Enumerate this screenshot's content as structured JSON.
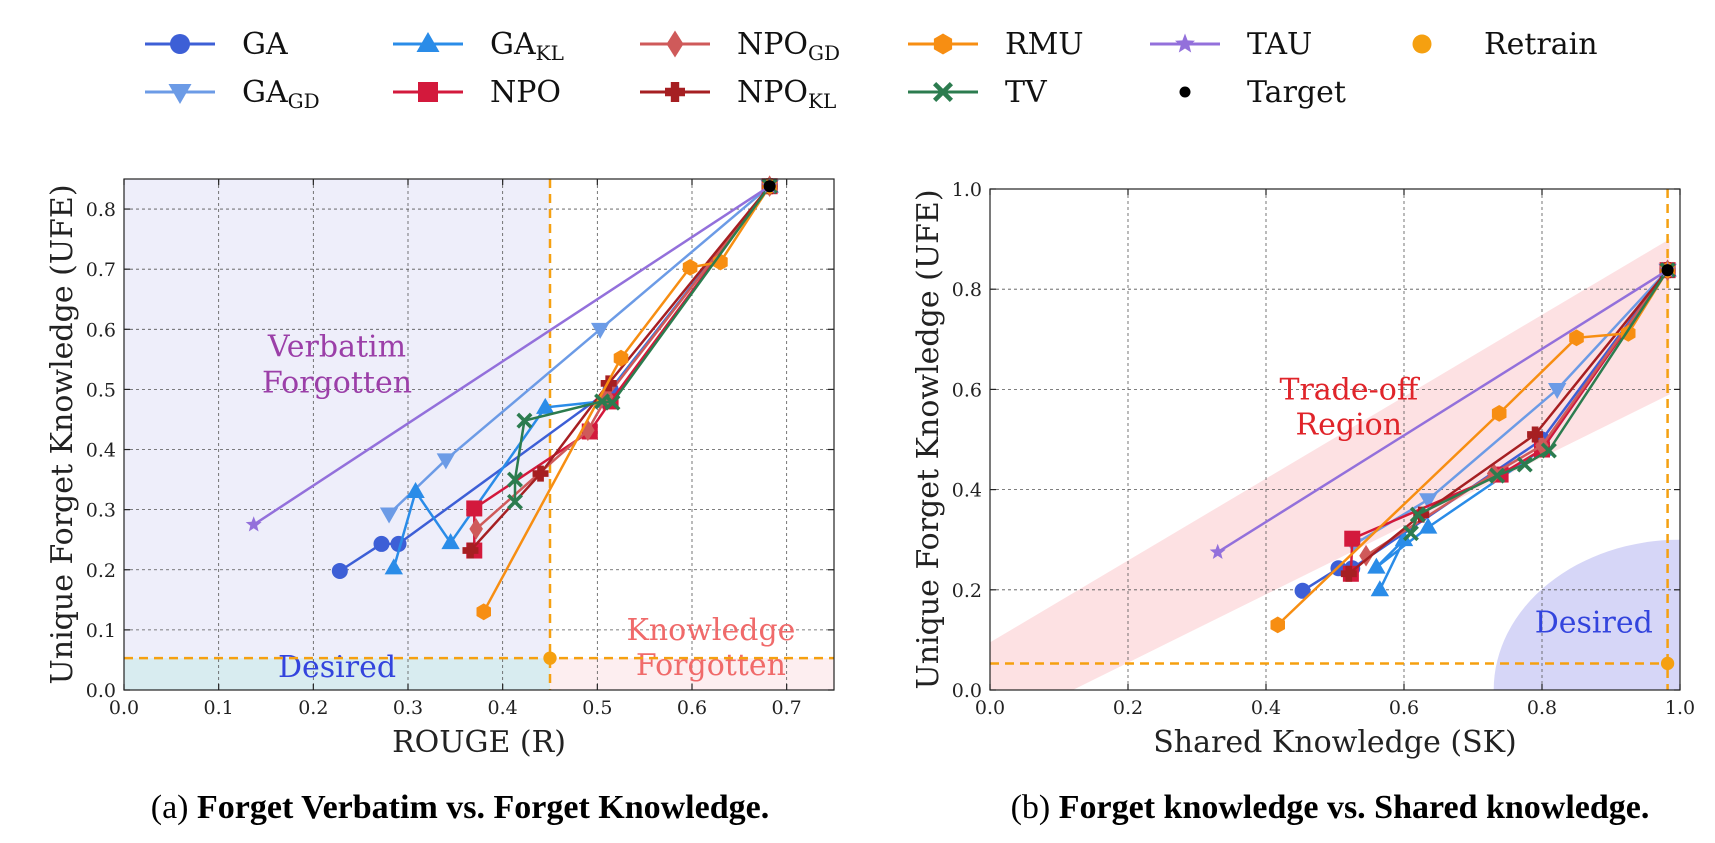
{
  "legend": [
    {
      "label": "GA",
      "sub": "",
      "color": "#3d5fd6",
      "marker": "circle"
    },
    {
      "label": "GA",
      "sub": "GD",
      "color": "#6c9be6",
      "marker": "tri-down"
    },
    {
      "label": "GA",
      "sub": "KL",
      "color": "#2a8ce8",
      "marker": "tri-up"
    },
    {
      "label": "NPO",
      "sub": "",
      "color": "#d3193c",
      "marker": "square"
    },
    {
      "label": "NPO",
      "sub": "GD",
      "color": "#cf5a5a",
      "marker": "diamond"
    },
    {
      "label": "NPO",
      "sub": "KL",
      "color": "#a61f22",
      "marker": "plus"
    },
    {
      "label": "RMU",
      "sub": "",
      "color": "#f78e12",
      "marker": "hexagon"
    },
    {
      "label": "TV",
      "sub": "",
      "color": "#2c7c4f",
      "marker": "x"
    },
    {
      "label": "TAU",
      "sub": "",
      "color": "#9370db",
      "marker": "star"
    },
    {
      "label": "Target",
      "sub": "",
      "color": "#000000",
      "marker": "dot"
    },
    {
      "label": "Retrain",
      "sub": "",
      "color": "#f5a010",
      "marker": "bigdot"
    }
  ],
  "chart_data": [
    {
      "type": "line",
      "caption_prefix": "(a) ",
      "caption_bold": "Forget Verbatim vs. Forget Knowledge.",
      "xlabel": "ROUGE (R)",
      "ylabel": "Unique Forget Knowledge (UFE)",
      "xlim": [
        0.0,
        0.75
      ],
      "ylim": [
        0.0,
        0.85
      ],
      "xticks": [
        "0.0",
        "0.1",
        "0.2",
        "0.3",
        "0.4",
        "0.5",
        "0.6",
        "0.7"
      ],
      "yticks": [
        "0.0",
        "0.1",
        "0.2",
        "0.3",
        "0.4",
        "0.5",
        "0.6",
        "0.7",
        "0.8"
      ],
      "grid": true,
      "threshold_x": 0.45,
      "threshold_y": 0.053,
      "region_labels": [
        {
          "text": "Verbatim",
          "x": 0.225,
          "y": 0.555,
          "color": "#9b3fa8"
        },
        {
          "text": "Forgotten",
          "x": 0.225,
          "y": 0.495,
          "color": "#9b3fa8"
        },
        {
          "text": "Knowledge",
          "x": 0.62,
          "y": 0.083,
          "color": "#f06a6a"
        },
        {
          "text": "Forgotten",
          "x": 0.62,
          "y": 0.025,
          "color": "#f06a6a"
        },
        {
          "text": "Desired",
          "x": 0.225,
          "y": 0.022,
          "color": "#3344dd"
        }
      ],
      "series": [
        {
          "name": "GA",
          "color": "#3d5fd6",
          "marker": "circle",
          "points": [
            [
              0.228,
              0.198
            ],
            [
              0.272,
              0.243
            ],
            [
              0.29,
              0.243
            ],
            [
              0.514,
              0.5
            ],
            [
              0.682,
              0.838
            ]
          ]
        },
        {
          "name": "GA_GD",
          "color": "#6c9be6",
          "marker": "tri-down",
          "points": [
            [
              0.28,
              0.293
            ],
            [
              0.34,
              0.383
            ],
            [
              0.503,
              0.6
            ],
            [
              0.682,
              0.838
            ]
          ]
        },
        {
          "name": "GA_KL",
          "color": "#2a8ce8",
          "marker": "tri-up",
          "points": [
            [
              0.285,
              0.203
            ],
            [
              0.308,
              0.33
            ],
            [
              0.345,
              0.245
            ],
            [
              0.445,
              0.47
            ],
            [
              0.505,
              0.48
            ],
            [
              0.682,
              0.838
            ]
          ]
        },
        {
          "name": "NPO",
          "color": "#d3193c",
          "marker": "square",
          "points": [
            [
              0.37,
              0.232
            ],
            [
              0.37,
              0.302
            ],
            [
              0.492,
              0.43
            ],
            [
              0.514,
              0.48
            ],
            [
              0.682,
              0.838
            ]
          ]
        },
        {
          "name": "NPO_GD",
          "color": "#cf5a5a",
          "marker": "diamond",
          "points": [
            [
              0.372,
              0.268
            ],
            [
              0.49,
              0.432
            ],
            [
              0.51,
              0.488
            ],
            [
              0.682,
              0.838
            ]
          ]
        },
        {
          "name": "NPO_KL",
          "color": "#a61f22",
          "marker": "plus",
          "points": [
            [
              0.366,
              0.232
            ],
            [
              0.44,
              0.36
            ],
            [
              0.512,
              0.51
            ],
            [
              0.682,
              0.838
            ]
          ]
        },
        {
          "name": "RMU",
          "color": "#f78e12",
          "marker": "hexagon",
          "points": [
            [
              0.38,
              0.13
            ],
            [
              0.525,
              0.552
            ],
            [
              0.598,
              0.703
            ],
            [
              0.63,
              0.712
            ],
            [
              0.682,
              0.838
            ]
          ]
        },
        {
          "name": "TV",
          "color": "#2c7c4f",
          "marker": "x",
          "points": [
            [
              0.413,
              0.313
            ],
            [
              0.413,
              0.35
            ],
            [
              0.423,
              0.448
            ],
            [
              0.505,
              0.48
            ],
            [
              0.516,
              0.478
            ],
            [
              0.682,
              0.838
            ]
          ]
        },
        {
          "name": "TAU",
          "color": "#9370db",
          "marker": "star",
          "points": [
            [
              0.137,
              0.275
            ],
            [
              0.682,
              0.838
            ]
          ]
        }
      ],
      "target": [
        0.682,
        0.838
      ],
      "retrain": [
        0.45,
        0.053
      ]
    },
    {
      "type": "line",
      "caption_prefix": "(b) ",
      "caption_bold": "Forget knowledge vs. Shared knowledge.",
      "xlabel": "Shared Knowledge (SK)",
      "ylabel": "Unique Forget Knowledge (UFE)",
      "xlim": [
        0.0,
        1.0
      ],
      "ylim": [
        0.0,
        1.0
      ],
      "xticks": [
        "0.0",
        "0.2",
        "0.4",
        "0.6",
        "0.8",
        "1.0"
      ],
      "yticks": [
        "0.0",
        "0.2",
        "0.4",
        "0.6",
        "0.8",
        "1.0"
      ],
      "grid": true,
      "threshold_x": 0.982,
      "threshold_y": 0.053,
      "region_labels": [
        {
          "text": "Trade-off",
          "x": 0.52,
          "y": 0.58,
          "color": "#e0242a"
        },
        {
          "text": "Region",
          "x": 0.52,
          "y": 0.51,
          "color": "#e0242a"
        },
        {
          "text": "Desired",
          "x": 0.875,
          "y": 0.115,
          "color": "#3344dd"
        }
      ],
      "series": [
        {
          "name": "GA",
          "color": "#3d5fd6",
          "marker": "circle",
          "points": [
            [
              0.453,
              0.198
            ],
            [
              0.505,
              0.243
            ],
            [
              0.525,
              0.243
            ],
            [
              0.8,
              0.5
            ],
            [
              0.982,
              0.838
            ]
          ]
        },
        {
          "name": "GA_GD",
          "color": "#6c9be6",
          "marker": "tri-down",
          "points": [
            [
              0.527,
              0.29
            ],
            [
              0.635,
              0.38
            ],
            [
              0.822,
              0.6
            ],
            [
              0.982,
              0.838
            ]
          ]
        },
        {
          "name": "GA_KL",
          "color": "#2a8ce8",
          "marker": "tri-up",
          "points": [
            [
              0.565,
              0.2
            ],
            [
              0.6,
              0.3
            ],
            [
              0.56,
              0.245
            ],
            [
              0.635,
              0.325
            ],
            [
              0.8,
              0.48
            ],
            [
              0.982,
              0.838
            ]
          ]
        },
        {
          "name": "NPO",
          "color": "#d3193c",
          "marker": "square",
          "points": [
            [
              0.523,
              0.232
            ],
            [
              0.525,
              0.302
            ],
            [
              0.74,
              0.43
            ],
            [
              0.8,
              0.48
            ],
            [
              0.982,
              0.838
            ]
          ]
        },
        {
          "name": "NPO_GD",
          "color": "#cf5a5a",
          "marker": "diamond",
          "points": [
            [
              0.545,
              0.268
            ],
            [
              0.73,
              0.432
            ],
            [
              0.8,
              0.488
            ],
            [
              0.982,
              0.838
            ]
          ]
        },
        {
          "name": "NPO_KL",
          "color": "#a61f22",
          "marker": "plus",
          "points": [
            [
              0.52,
              0.232
            ],
            [
              0.625,
              0.35
            ],
            [
              0.79,
              0.51
            ],
            [
              0.982,
              0.838
            ]
          ]
        },
        {
          "name": "RMU",
          "color": "#f78e12",
          "marker": "hexagon",
          "points": [
            [
              0.417,
              0.13
            ],
            [
              0.738,
              0.552
            ],
            [
              0.85,
              0.703
            ],
            [
              0.925,
              0.712
            ],
            [
              0.982,
              0.838
            ]
          ]
        },
        {
          "name": "TV",
          "color": "#2c7c4f",
          "marker": "x",
          "points": [
            [
              0.61,
              0.313
            ],
            [
              0.62,
              0.35
            ],
            [
              0.735,
              0.428
            ],
            [
              0.775,
              0.45
            ],
            [
              0.81,
              0.478
            ],
            [
              0.982,
              0.838
            ]
          ]
        },
        {
          "name": "TAU",
          "color": "#9370db",
          "marker": "star",
          "points": [
            [
              0.33,
              0.275
            ],
            [
              0.982,
              0.838
            ]
          ]
        }
      ],
      "target": [
        0.982,
        0.838
      ],
      "retrain": [
        0.982,
        0.053
      ]
    }
  ]
}
